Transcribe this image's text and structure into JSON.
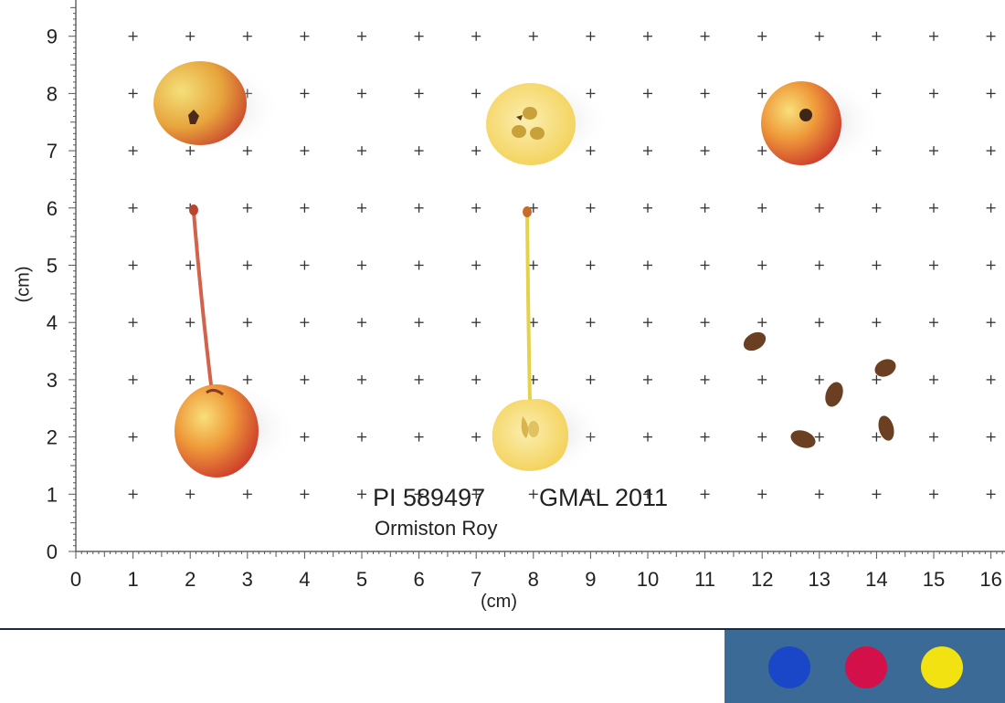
{
  "labels": {
    "accession": "PI 589497",
    "collection": "GMAL 2011",
    "cultivar": "Ormiston Roy",
    "x_unit": "(cm)",
    "y_unit": "(cm)"
  },
  "axes": {
    "x_ticks": [
      "0",
      "1",
      "2",
      "3",
      "4",
      "5",
      "6",
      "7",
      "8",
      "9",
      "10",
      "11",
      "12",
      "13",
      "14",
      "15",
      "16"
    ],
    "y_ticks": [
      "0",
      "1",
      "2",
      "3",
      "4",
      "5",
      "6",
      "7",
      "8",
      "9"
    ]
  },
  "specimens": {
    "fruit_whole_top": "fruit-top-view",
    "fruit_cross_section": "fruit-cross-section",
    "fruit_calyx": "fruit-calyx-view",
    "fruit_with_stem": "fruit-side-with-stem",
    "fruit_longitudinal": "fruit-longitudinal-section",
    "seeds": "seeds"
  },
  "colors": {
    "card_background": "#3a6a95",
    "swatch_blue": "#1a47c8",
    "swatch_magenta": "#d4104a",
    "swatch_yellow": "#f3e212",
    "fruit_red": "#d8442a",
    "fruit_yellow": "#f4c84a",
    "flesh": "#f7e59a",
    "seed_brown": "#6b4022"
  }
}
